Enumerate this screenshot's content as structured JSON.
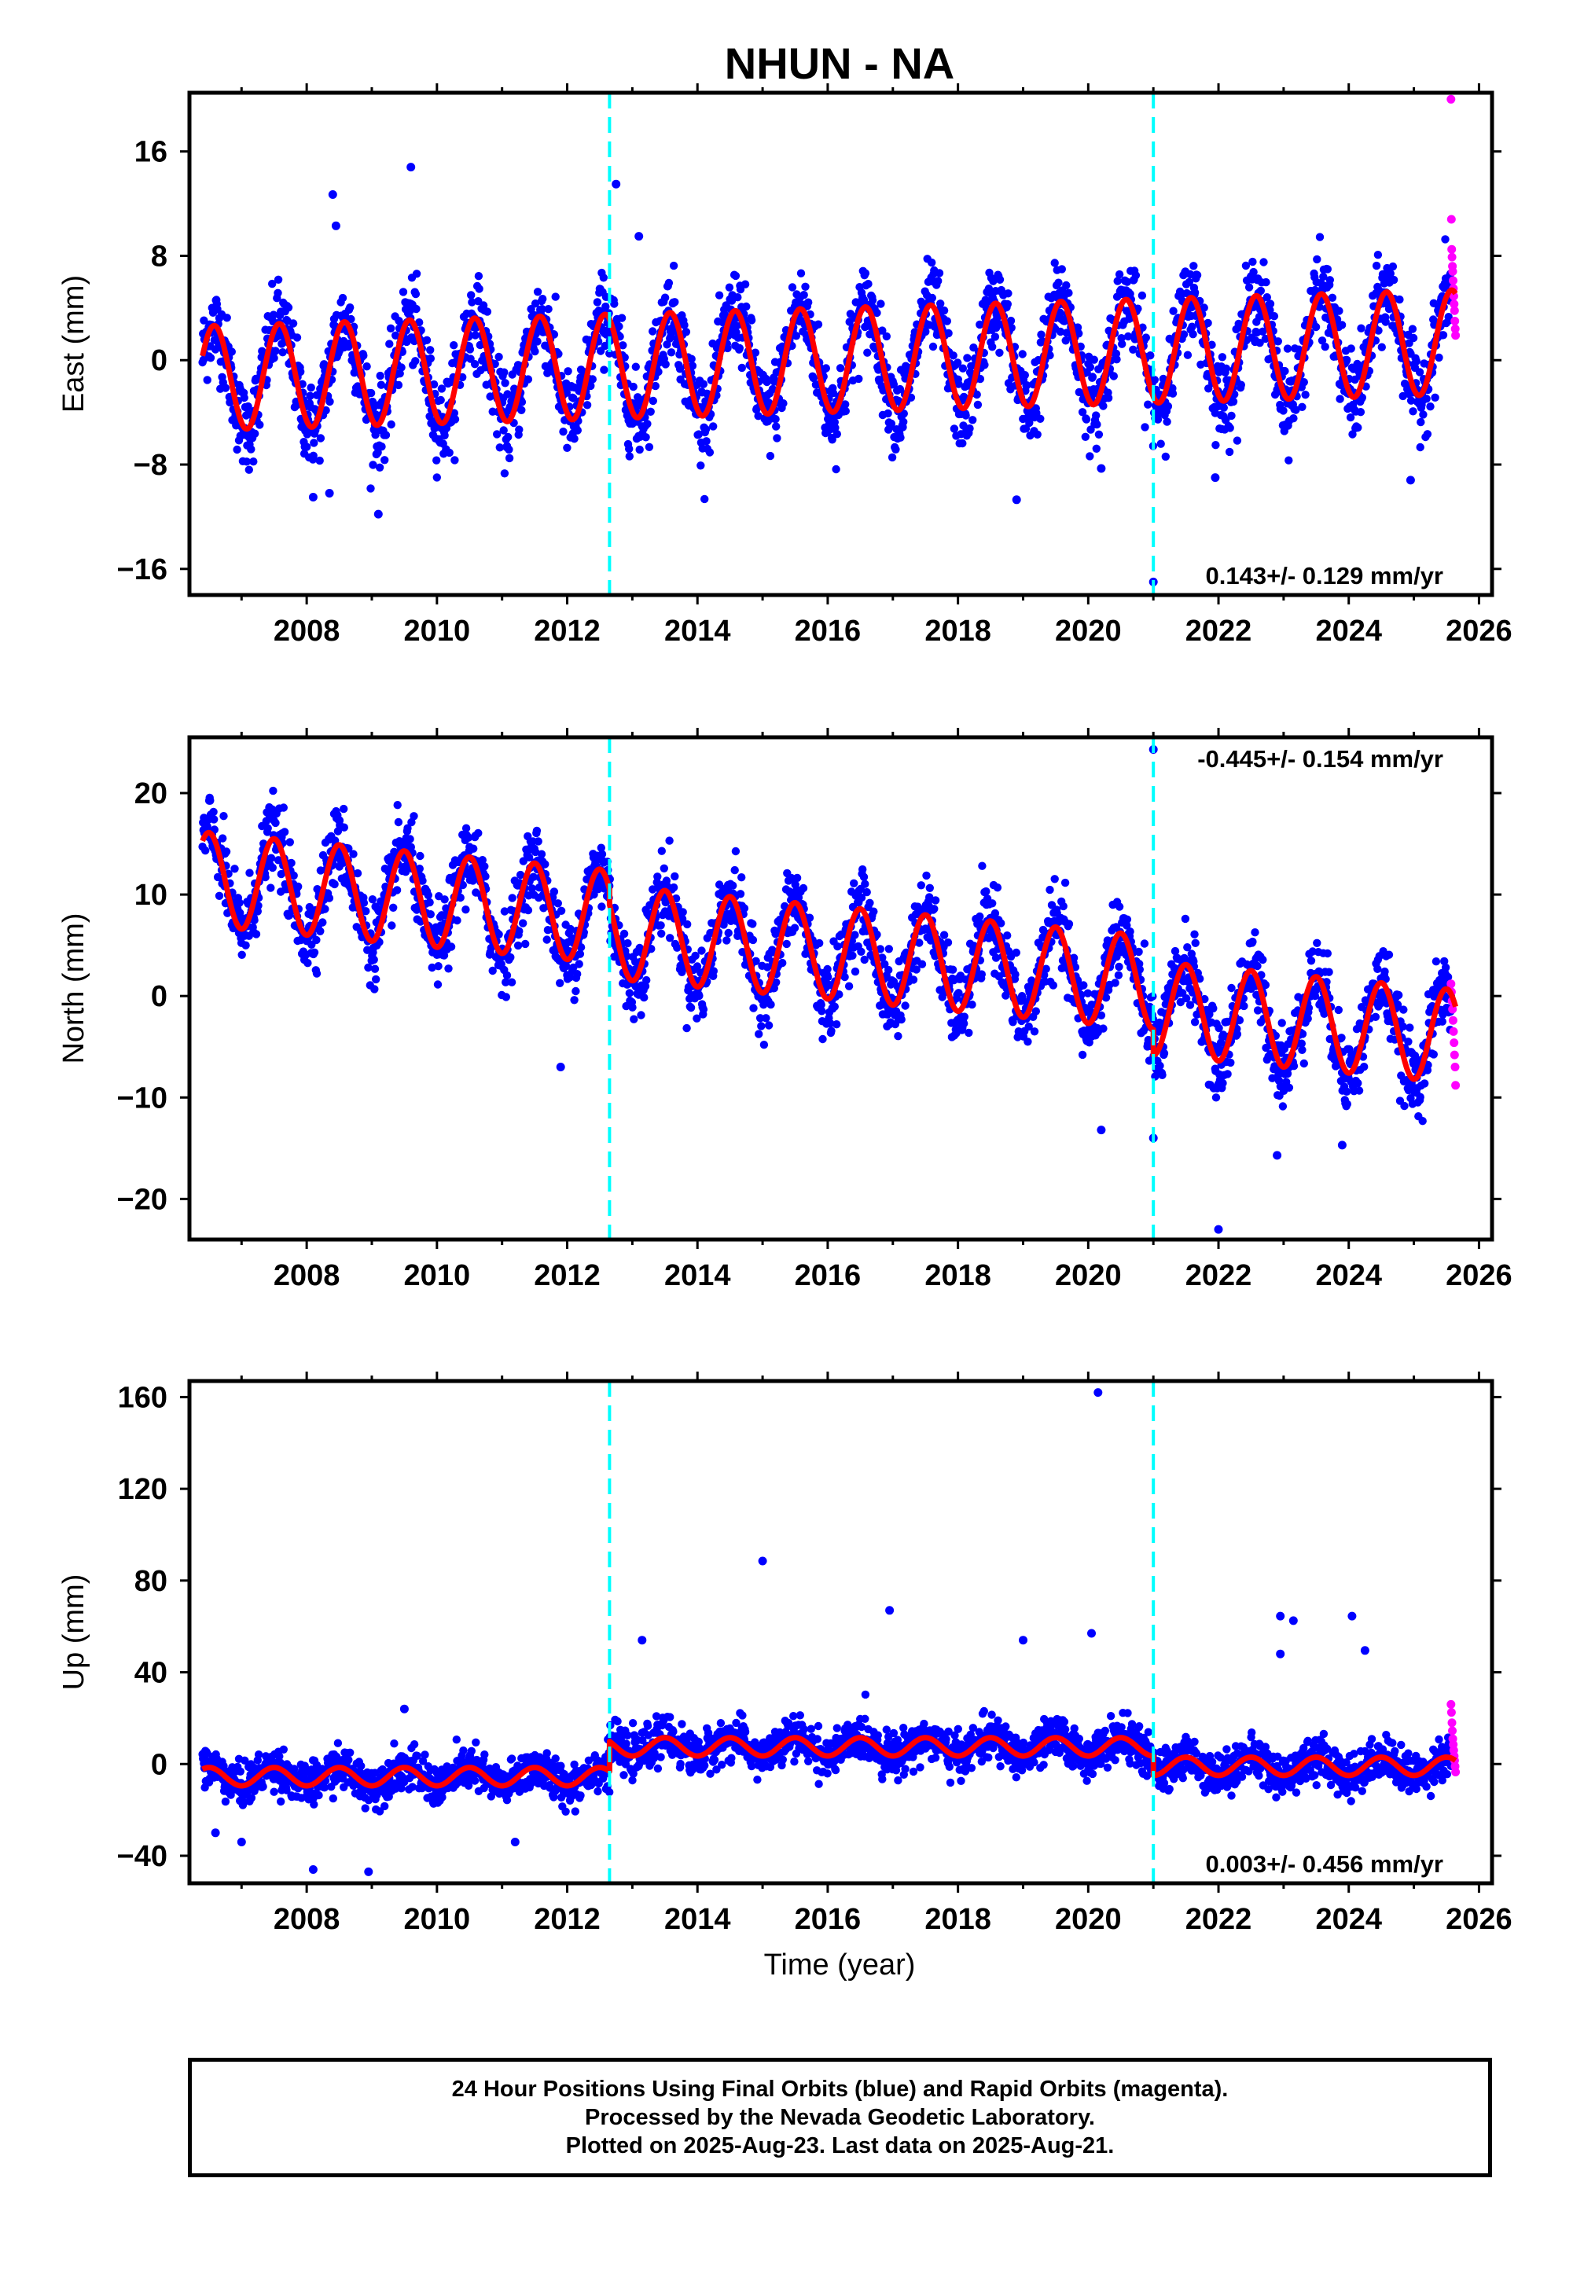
{
  "chart_data": {
    "type": "scatter",
    "title": "NHUN - NA",
    "xlabel": "Time (year)",
    "xlim": [
      2006.2,
      2026.2
    ],
    "x_ticks": [
      "2008",
      "2010",
      "2012",
      "2014",
      "2016",
      "2018",
      "2020",
      "2022",
      "2024",
      "2026"
    ],
    "x_tick_values": [
      2008,
      2010,
      2012,
      2014,
      2016,
      2018,
      2020,
      2022,
      2024,
      2026
    ],
    "steps": [
      2012.65,
      2021.0
    ],
    "data_range": [
      2006.4,
      2025.64
    ],
    "rapid_start": 2025.57,
    "grid": false,
    "colors": {
      "final": "#0000ff",
      "rapid": "#ff00ff",
      "model": "#ff0000",
      "step": "#00ffff",
      "frame": "#000000"
    },
    "series": [
      {
        "name": "Final Orbits (blue)",
        "color": "#0000ff"
      },
      {
        "name": "Rapid Orbits (magenta)",
        "color": "#ff00ff"
      }
    ],
    "panels": [
      {
        "ylabel": "East (mm)",
        "ylim": [
          -18,
          20.5
        ],
        "y_ticks": [
          "16",
          "8",
          "0",
          "−8",
          "−16"
        ],
        "y_tick_values": [
          16,
          8,
          0,
          -8,
          -16
        ],
        "rate": "0.143+/- 0.129 mm/yr",
        "rate_position": "bottom-right",
        "model": {
          "offset": 0.0,
          "trend": 0.143,
          "amplitude": 4.0,
          "phase_year": 0.58,
          "noise": 1.6,
          "steps": [
            0,
            0
          ]
        },
        "outliers": [
          [
            2008.4,
            12.7
          ],
          [
            2008.45,
            10.3
          ],
          [
            2009.6,
            14.8
          ],
          [
            2012.75,
            13.5
          ],
          [
            2013.1,
            9.5
          ],
          [
            2008.1,
            -10.5
          ],
          [
            2008.35,
            -10.2
          ],
          [
            2009.1,
            -11.8
          ],
          [
            2018.9,
            -10.7
          ],
          [
            2020.2,
            -8.3
          ],
          [
            2021.95,
            -9.0
          ],
          [
            2024.95,
            -9.2
          ],
          [
            2021.0,
            -17.0
          ]
        ],
        "rapid_values": [
          20.0,
          10.8,
          8.5,
          7.9,
          7.2,
          6.8,
          6.1,
          5.5,
          4.9,
          4.3,
          3.8,
          3.0,
          2.4,
          1.9
        ]
      },
      {
        "ylabel": "North (mm)",
        "ylim": [
          -24,
          25.5
        ],
        "y_ticks": [
          "20",
          "10",
          "0",
          "−10",
          "−20"
        ],
        "y_tick_values": [
          20,
          10,
          0,
          -10,
          -20
        ],
        "rate": "-0.445+/- 0.154 mm/yr",
        "rate_position": "top-right",
        "model": {
          "offset": 5.8,
          "trend": -0.6,
          "amplitude": 4.6,
          "phase_year": 0.5,
          "noise": 1.9,
          "steps": [
            -1.5,
            -2.5
          ]
        },
        "outliers": [
          [
            2008.5,
            17.3
          ],
          [
            2009.5,
            14.2
          ],
          [
            2021.0,
            24.3
          ],
          [
            2011.9,
            -7.0
          ],
          [
            2020.2,
            -13.2
          ],
          [
            2022.0,
            -23.0
          ],
          [
            2022.9,
            -15.7
          ],
          [
            2023.9,
            -14.7
          ],
          [
            2021.0,
            -14.0
          ]
        ],
        "rapid_values": [
          1.2,
          0.4,
          -0.5,
          -1.3,
          -2.4,
          -3.5,
          -4.6,
          -5.8,
          -7.0,
          -8.8
        ]
      },
      {
        "ylabel": "Up (mm)",
        "ylim": [
          -52,
          167
        ],
        "y_ticks": [
          "160",
          "120",
          "80",
          "40",
          "0",
          "−40"
        ],
        "y_tick_values": [
          160,
          120,
          80,
          40,
          0,
          -40
        ],
        "rate": "0.003+/- 0.456 mm/yr",
        "rate_position": "bottom-right",
        "model": {
          "offset": -5.5,
          "trend": 0.0,
          "amplitude": 4.0,
          "phase_year": 0.5,
          "noise": 4.5,
          "steps": [
            13.0,
            -8.5
          ]
        },
        "outliers": [
          [
            2020.15,
            162.0
          ],
          [
            2015.0,
            88.5
          ],
          [
            2016.95,
            67.0
          ],
          [
            2022.95,
            64.5
          ],
          [
            2023.15,
            62.5
          ],
          [
            2024.05,
            64.5
          ],
          [
            2020.05,
            57.0
          ],
          [
            2013.15,
            54.0
          ],
          [
            2019.0,
            54.0
          ],
          [
            2024.25,
            49.5
          ],
          [
            2022.95,
            48.0
          ],
          [
            2009.5,
            24.0
          ],
          [
            2008.1,
            -46.0
          ],
          [
            2008.95,
            -47.0
          ],
          [
            2007.0,
            -34.0
          ],
          [
            2011.2,
            -34.0
          ],
          [
            2006.6,
            -30.0
          ]
        ],
        "rapid_values": [
          26.0,
          22.5,
          18.0,
          14.5,
          11.0,
          8.5,
          6.0,
          3.5,
          1.5,
          -1.0,
          -3.5
        ]
      }
    ]
  },
  "footer": {
    "line1": "24 Hour Positions Using Final Orbits (blue) and Rapid Orbits (magenta).",
    "line2": "Processed by the Nevada Geodetic Laboratory.",
    "line3": "Plotted on 2025-Aug-23. Last data on 2025-Aug-21."
  }
}
